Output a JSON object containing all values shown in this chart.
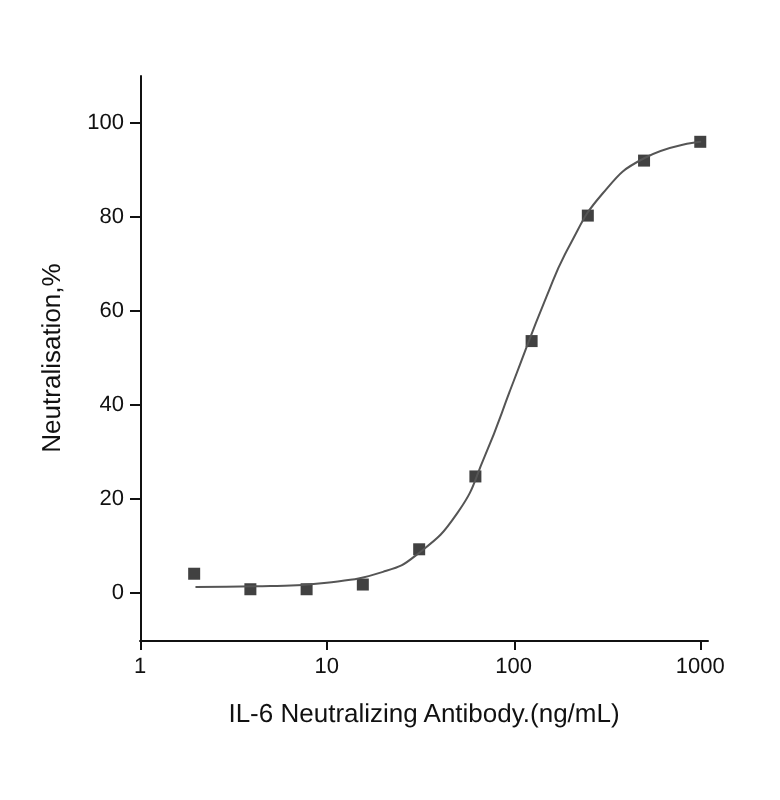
{
  "chart_data": {
    "type": "scatter",
    "xlabel": "IL-6 Neutralizing Antibody.(ng/mL)",
    "ylabel": "Neutralisation,%",
    "log": "x",
    "xlim": [
      1,
      1100
    ],
    "xticks": [
      1,
      10,
      100,
      1000
    ],
    "ylim": [
      -10,
      110
    ],
    "yticks": [
      0,
      20,
      40,
      60,
      80,
      100
    ],
    "grid": false,
    "series": [
      {
        "marker": "square",
        "color": "#111111",
        "x": [
          1.95,
          3.9,
          7.8,
          15.6,
          31.25,
          62.5,
          125,
          250,
          500,
          1000
        ],
        "values": [
          4.1,
          0.8,
          0.8,
          1.8,
          9.3,
          24.8,
          53.6,
          80.3,
          92,
          96
        ]
      },
      {
        "type": "line",
        "marker": "none",
        "line_style": "solid",
        "color": "#555555",
        "x": [
          2,
          5,
          10,
          20,
          30,
          50,
          70,
          100,
          150,
          200,
          300,
          500,
          1000
        ],
        "values": [
          1.3,
          1.5,
          2.2,
          4.5,
          8,
          17,
          29,
          45,
          63,
          74,
          85,
          92.5,
          96
        ]
      }
    ]
  }
}
